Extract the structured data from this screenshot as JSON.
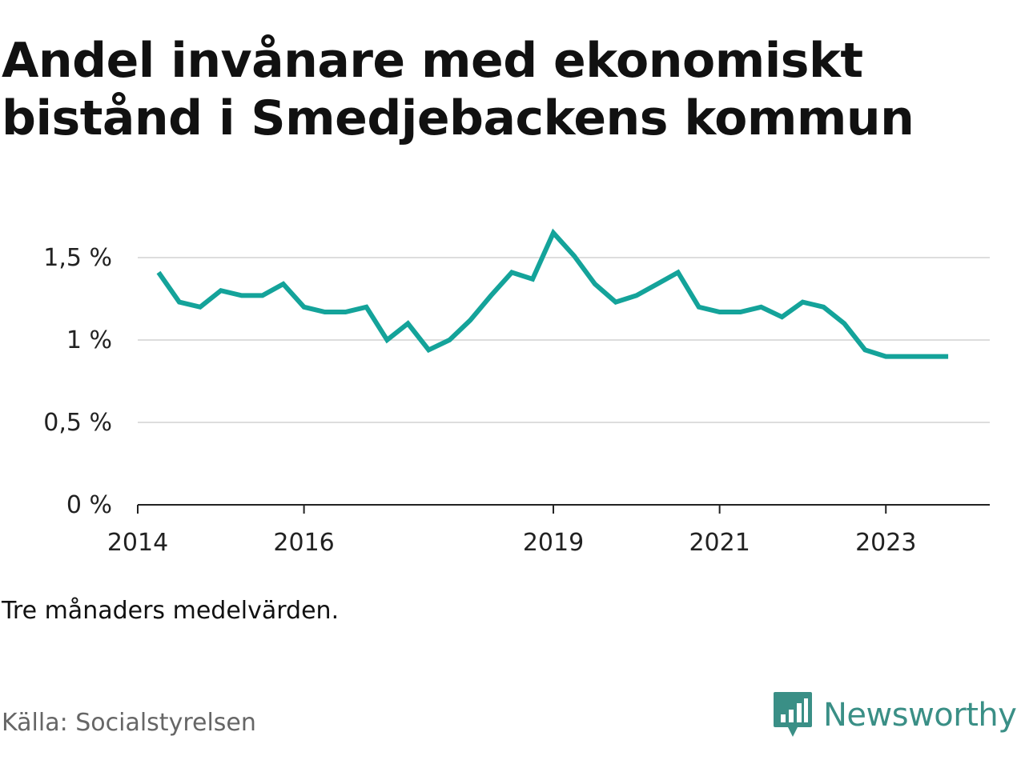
{
  "title": "Andel invånare med ekonomiskt bistånd i Smedjebackens kommun",
  "note": "Tre månaders medelvärden.",
  "source": "Källa: Socialstyrelsen",
  "brand": {
    "name": "Newsworthy",
    "color": "#3a8f86",
    "icon": "newsworthy-chart-bubble-icon"
  },
  "colors": {
    "line": "#14a39a",
    "grid": "#dddddd",
    "axis": "#222222"
  },
  "chart_data": {
    "type": "line",
    "title": "Andel invånare med ekonomiskt bistånd i Smedjebackens kommun",
    "xlabel": "",
    "ylabel": "",
    "y_unit": "%",
    "ylim": [
      0,
      1.5
    ],
    "yticks": [
      {
        "value": 0,
        "label": "0 %"
      },
      {
        "value": 0.5,
        "label": "0,5 %"
      },
      {
        "value": 1,
        "label": "1 %"
      },
      {
        "value": 1.5,
        "label": "1,5 %"
      }
    ],
    "xlim": [
      "2014-01",
      "2024-04"
    ],
    "xticks": [
      {
        "date": "2014-01",
        "label": "2014"
      },
      {
        "date": "2016-01",
        "label": "2016"
      },
      {
        "date": "2019-01",
        "label": "2019"
      },
      {
        "date": "2021-01",
        "label": "2021"
      },
      {
        "date": "2023-01",
        "label": "2023"
      }
    ],
    "grid": true,
    "legend": "none",
    "x": [
      "2014-04",
      "2014-07",
      "2014-10",
      "2015-01",
      "2015-04",
      "2015-07",
      "2015-10",
      "2016-01",
      "2016-04",
      "2016-07",
      "2016-10",
      "2017-01",
      "2017-04",
      "2017-07",
      "2017-10",
      "2018-01",
      "2018-04",
      "2018-07",
      "2018-10",
      "2019-01",
      "2019-04",
      "2019-07",
      "2019-10",
      "2020-01",
      "2020-04",
      "2020-07",
      "2020-10",
      "2021-01",
      "2021-04",
      "2021-07",
      "2021-10",
      "2022-01",
      "2022-04",
      "2022-07",
      "2022-10",
      "2023-01",
      "2023-04",
      "2023-07",
      "2023-10"
    ],
    "values": [
      1.41,
      1.23,
      1.2,
      1.3,
      1.27,
      1.27,
      1.34,
      1.2,
      1.17,
      1.17,
      1.2,
      1.0,
      1.1,
      0.94,
      1.0,
      1.12,
      1.27,
      1.41,
      1.37,
      1.65,
      1.51,
      1.34,
      1.23,
      1.27,
      1.34,
      1.41,
      1.2,
      1.17,
      1.17,
      1.2,
      1.14,
      1.23,
      1.2,
      1.1,
      0.94,
      0.9,
      0.9,
      0.9,
      0.9
    ]
  }
}
